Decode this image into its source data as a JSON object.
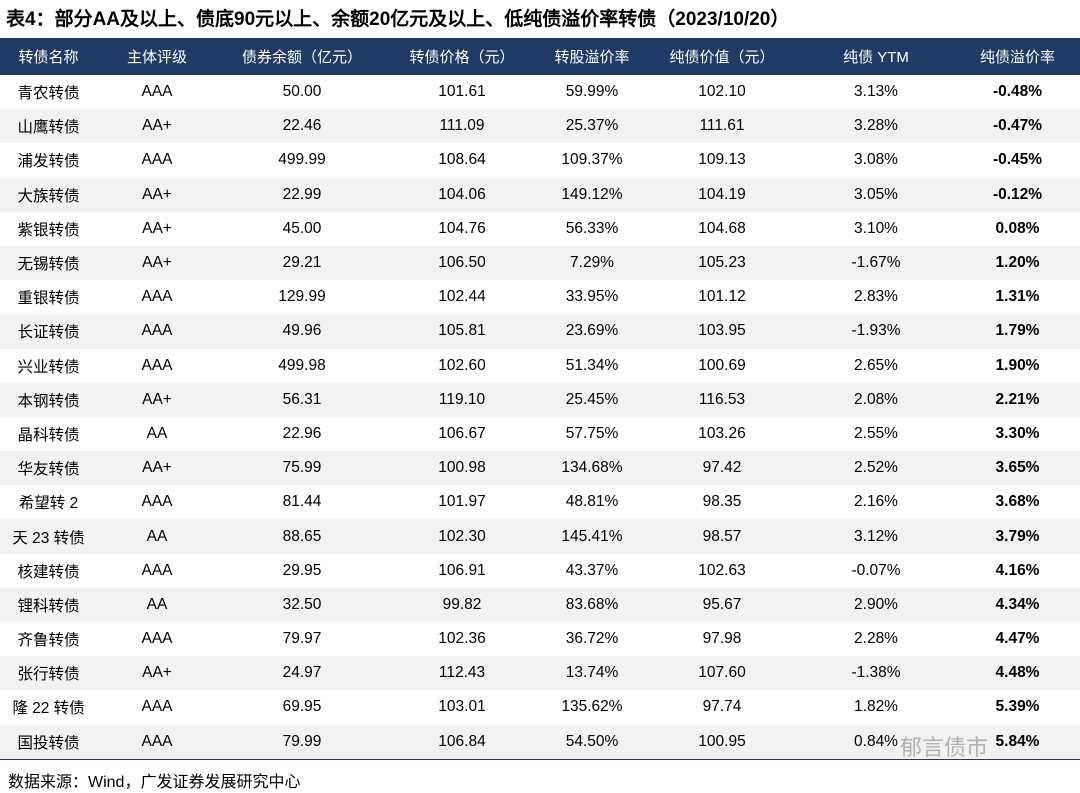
{
  "header": {
    "title": "表4：部分AA及以上、债底90元以上、余额20亿元及以上、低纯债溢价率转债（2023/10/20）"
  },
  "table": {
    "columns": [
      "转债名称",
      "主体评级",
      "债券余额（亿元）",
      "转债价格（元）",
      "转股溢价率",
      "纯债价值（元）",
      "纯债 YTM",
      "纯债溢价率"
    ],
    "rows": [
      [
        "青农转债",
        "AAA",
        "50.00",
        "101.61",
        "59.99%",
        "102.10",
        "3.13%",
        "-0.48%"
      ],
      [
        "山鹰转债",
        "AA+",
        "22.46",
        "111.09",
        "25.37%",
        "111.61",
        "3.28%",
        "-0.47%"
      ],
      [
        "浦发转债",
        "AAA",
        "499.99",
        "108.64",
        "109.37%",
        "109.13",
        "3.08%",
        "-0.45%"
      ],
      [
        "大族转债",
        "AA+",
        "22.99",
        "104.06",
        "149.12%",
        "104.19",
        "3.05%",
        "-0.12%"
      ],
      [
        "紫银转债",
        "AA+",
        "45.00",
        "104.76",
        "56.33%",
        "104.68",
        "3.10%",
        "0.08%"
      ],
      [
        "无锡转债",
        "AA+",
        "29.21",
        "106.50",
        "7.29%",
        "105.23",
        "-1.67%",
        "1.20%"
      ],
      [
        "重银转债",
        "AAA",
        "129.99",
        "102.44",
        "33.95%",
        "101.12",
        "2.83%",
        "1.31%"
      ],
      [
        "长证转债",
        "AAA",
        "49.96",
        "105.81",
        "23.69%",
        "103.95",
        "-1.93%",
        "1.79%"
      ],
      [
        "兴业转债",
        "AAA",
        "499.98",
        "102.60",
        "51.34%",
        "100.69",
        "2.65%",
        "1.90%"
      ],
      [
        "本钢转债",
        "AA+",
        "56.31",
        "119.10",
        "25.45%",
        "116.53",
        "2.08%",
        "2.21%"
      ],
      [
        "晶科转债",
        "AA",
        "22.96",
        "106.67",
        "57.75%",
        "103.26",
        "2.55%",
        "3.30%"
      ],
      [
        "华友转债",
        "AA+",
        "75.99",
        "100.98",
        "134.68%",
        "97.42",
        "2.52%",
        "3.65%"
      ],
      [
        "希望转 2",
        "AAA",
        "81.44",
        "101.97",
        "48.81%",
        "98.35",
        "2.16%",
        "3.68%"
      ],
      [
        "天 23 转债",
        "AA",
        "88.65",
        "102.30",
        "145.41%",
        "98.57",
        "3.12%",
        "3.79%"
      ],
      [
        "核建转债",
        "AAA",
        "29.95",
        "106.91",
        "43.37%",
        "102.63",
        "-0.07%",
        "4.16%"
      ],
      [
        "锂科转债",
        "AA",
        "32.50",
        "99.82",
        "83.68%",
        "95.67",
        "2.90%",
        "4.34%"
      ],
      [
        "齐鲁转债",
        "AAA",
        "79.97",
        "102.36",
        "36.72%",
        "97.98",
        "2.28%",
        "4.47%"
      ],
      [
        "张行转债",
        "AA+",
        "24.97",
        "112.43",
        "13.74%",
        "107.60",
        "-1.38%",
        "4.48%"
      ],
      [
        "隆 22 转债",
        "AAA",
        "69.95",
        "103.01",
        "135.62%",
        "97.74",
        "1.82%",
        "5.39%"
      ],
      [
        "国投转债",
        "AAA",
        "79.99",
        "106.84",
        "54.50%",
        "100.95",
        "0.84%",
        "5.84%"
      ]
    ]
  },
  "source": "数据来源：Wind，广发证券发展研究中心",
  "watermark": "郁言债市"
}
